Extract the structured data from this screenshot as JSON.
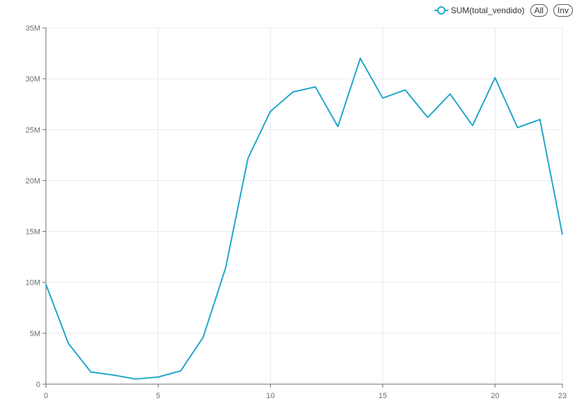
{
  "legend": {
    "series_name": "SUM(total_vendido)",
    "all_label": "All",
    "inv_label": "Inv",
    "color": "#20a7c9"
  },
  "chart_data": {
    "type": "line",
    "x": [
      0,
      1,
      2,
      3,
      4,
      5,
      6,
      7,
      8,
      9,
      10,
      11,
      12,
      13,
      14,
      15,
      16,
      17,
      18,
      19,
      20,
      21,
      22,
      23
    ],
    "series": [
      {
        "name": "SUM(total_vendido)",
        "color": "#20a7c9",
        "values": [
          9.8,
          4.0,
          1.2,
          0.9,
          0.5,
          0.7,
          1.3,
          4.6,
          11.4,
          22.2,
          26.8,
          28.7,
          29.2,
          25.3,
          32.0,
          28.1,
          28.9,
          26.2,
          28.5,
          25.4,
          30.1,
          25.2,
          26.0,
          14.7
        ]
      }
    ],
    "xlim": [
      0,
      23
    ],
    "ylim": [
      0,
      35
    ],
    "x_ticks": [
      0,
      5,
      10,
      15,
      20,
      23
    ],
    "y_ticks": [
      0,
      5,
      10,
      15,
      20,
      25,
      30,
      35
    ],
    "y_tick_labels": [
      "0",
      "5M",
      "10M",
      "15M",
      "20M",
      "25M",
      "30M",
      "35M"
    ],
    "grid": true,
    "legend_position": "top-right"
  }
}
